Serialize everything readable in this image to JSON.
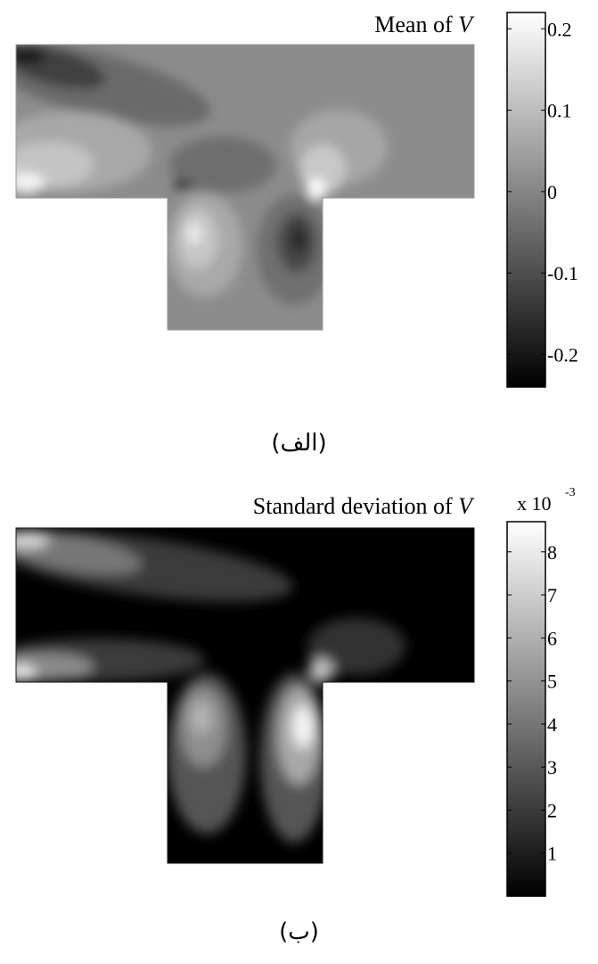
{
  "chart_data": [
    {
      "type": "heatmap",
      "panel_caption": "(الف)",
      "title": "Mean of",
      "title_variable": "V",
      "colormap": "gray",
      "colorbar": {
        "range": [
          -0.24,
          0.22
        ],
        "ticks": [
          0.2,
          0.1,
          0,
          -0.1,
          -0.2
        ],
        "tick_labels": [
          "0.2",
          "0.1",
          "0",
          "-0.1",
          "-0.2"
        ],
        "exponent_label": ""
      },
      "background_level": 0.0
    },
    {
      "type": "heatmap",
      "panel_caption": "(ب)",
      "title": "Standard deviation of",
      "title_variable": "V",
      "colormap": "gray",
      "colorbar": {
        "range": [
          0,
          8.7
        ],
        "ticks": [
          8,
          7,
          6,
          5,
          4,
          3,
          2,
          1
        ],
        "tick_labels": [
          "8",
          "7",
          "6",
          "5",
          "4",
          "3",
          "2",
          "1"
        ],
        "exponent_label": "x 10",
        "exponent_power": "-3"
      },
      "background_level": 0.0
    }
  ]
}
